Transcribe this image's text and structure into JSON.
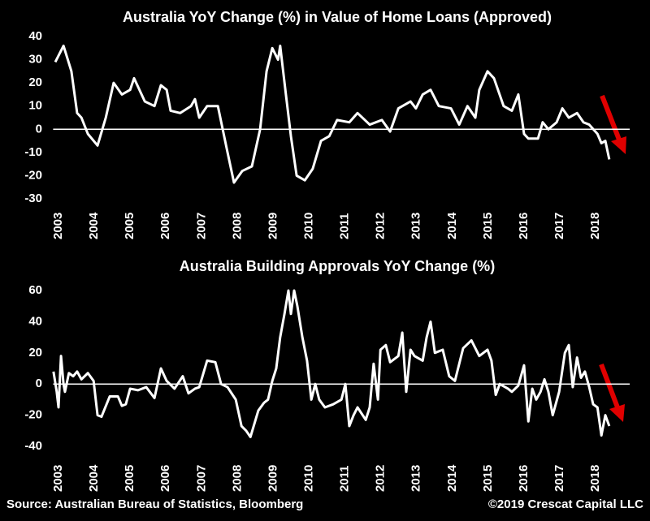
{
  "chart_data": [
    {
      "type": "line",
      "title": "Australia YoY Change (%) in Value of Home Loans (Approved)",
      "xlim": [
        2002.85,
        2018.95
      ],
      "xticks": [
        2003,
        2004,
        2005,
        2006,
        2007,
        2008,
        2009,
        2010,
        2011,
        2012,
        2013,
        2014,
        2015,
        2016,
        2017,
        2018
      ],
      "ylim": [
        -30,
        40
      ],
      "yticks": [
        -30,
        -20,
        -10,
        0,
        10,
        20,
        30,
        40
      ],
      "series": [
        {
          "color": "#ffffff",
          "x": [
            2002.91,
            2003.14,
            2003.36,
            2003.52,
            2003.64,
            2003.82,
            2004.09,
            2004.32,
            2004.54,
            2004.77,
            2005.0,
            2005.11,
            2005.41,
            2005.68,
            2005.86,
            2006.02,
            2006.13,
            2006.4,
            2006.7,
            2006.81,
            2006.93,
            2007.15,
            2007.45,
            2007.72,
            2007.9,
            2008.13,
            2008.4,
            2008.63,
            2008.81,
            2008.97,
            2009.13,
            2009.19,
            2009.35,
            2009.49,
            2009.65,
            2009.88,
            2010.1,
            2010.33,
            2010.56,
            2010.78,
            2011.12,
            2011.35,
            2011.69,
            2012.03,
            2012.26,
            2012.49,
            2012.83,
            2012.98,
            2013.17,
            2013.39,
            2013.62,
            2013.96,
            2014.19,
            2014.42,
            2014.64,
            2014.75,
            2014.98,
            2015.16,
            2015.43,
            2015.66,
            2015.84,
            2016.0,
            2016.12,
            2016.39,
            2016.52,
            2016.68,
            2016.91,
            2017.07,
            2017.25,
            2017.48,
            2017.66,
            2017.82,
            2018.05,
            2018.16,
            2018.27,
            2018.38
          ],
          "values": [
            29,
            36,
            25,
            7,
            5,
            -2,
            -7,
            5,
            20,
            15,
            17,
            22,
            12,
            10,
            19,
            17,
            8,
            7,
            10,
            13,
            5,
            10,
            10,
            -10,
            -23,
            -18,
            -16,
            0,
            25,
            35,
            30,
            36,
            15,
            -3,
            -20,
            -22,
            -17,
            -5,
            -3,
            4,
            3,
            7,
            2,
            4,
            -1,
            9,
            12,
            9,
            15,
            17,
            10,
            9,
            2,
            10,
            5,
            17,
            25,
            22,
            10,
            8,
            15,
            -2,
            -4,
            -4,
            3,
            0,
            3,
            9,
            5,
            7,
            3,
            2,
            -2,
            -6,
            -5,
            -13
          ]
        }
      ]
    },
    {
      "type": "line",
      "title": "Australia Building Approvals YoY Change (%)",
      "xlim": [
        2002.85,
        2018.95
      ],
      "xticks": [
        2003,
        2004,
        2005,
        2006,
        2007,
        2008,
        2009,
        2010,
        2011,
        2012,
        2013,
        2014,
        2015,
        2016,
        2017,
        2018
      ],
      "ylim": [
        -40,
        60
      ],
      "yticks": [
        -40,
        -20,
        0,
        20,
        40,
        60
      ],
      "series": [
        {
          "color": "#ffffff",
          "x": [
            2002.86,
            2002.95,
            2003.0,
            2003.07,
            2003.14,
            2003.18,
            2003.29,
            2003.41,
            2003.52,
            2003.64,
            2003.82,
            2003.98,
            2004.09,
            2004.2,
            2004.43,
            2004.66,
            2004.77,
            2004.88,
            2005.0,
            2005.22,
            2005.45,
            2005.68,
            2005.86,
            2006.02,
            2006.24,
            2006.47,
            2006.63,
            2006.81,
            2006.93,
            2007.15,
            2007.38,
            2007.54,
            2007.72,
            2007.95,
            2008.11,
            2008.24,
            2008.36,
            2008.58,
            2008.74,
            2008.85,
            2008.97,
            2009.08,
            2009.19,
            2009.31,
            2009.42,
            2009.49,
            2009.58,
            2009.67,
            2009.81,
            2009.94,
            2010.06,
            2010.17,
            2010.28,
            2010.44,
            2010.67,
            2010.9,
            2011.01,
            2011.12,
            2011.24,
            2011.35,
            2011.58,
            2011.69,
            2011.8,
            2011.92,
            2011.99,
            2012.14,
            2012.26,
            2012.49,
            2012.6,
            2012.71,
            2012.83,
            2012.94,
            2013.17,
            2013.28,
            2013.39,
            2013.51,
            2013.73,
            2013.91,
            2014.07,
            2014.3,
            2014.53,
            2014.75,
            2014.98,
            2015.09,
            2015.21,
            2015.32,
            2015.55,
            2015.66,
            2015.84,
            2016.0,
            2016.12,
            2016.23,
            2016.34,
            2016.46,
            2016.57,
            2016.68,
            2016.8,
            2016.98,
            2017.14,
            2017.25,
            2017.36,
            2017.48,
            2017.59,
            2017.7,
            2017.82,
            2017.93,
            2018.05,
            2018.16,
            2018.27,
            2018.38
          ],
          "values": [
            8,
            -5,
            -15,
            18,
            0,
            -5,
            7,
            5,
            8,
            3,
            7,
            2,
            -20,
            -21,
            -8,
            -8,
            -14,
            -13,
            -3,
            -4,
            -2,
            -9,
            10,
            2,
            -3,
            5,
            -6,
            -3,
            -2,
            15,
            14,
            0,
            -2,
            -10,
            -27,
            -30,
            -34,
            -17,
            -12,
            -10,
            2,
            10,
            30,
            45,
            60,
            45,
            60,
            50,
            30,
            15,
            -10,
            0,
            -10,
            -15,
            -13,
            -10,
            0,
            -27,
            -20,
            -15,
            -23,
            -15,
            13,
            -10,
            22,
            25,
            14,
            18,
            33,
            -5,
            22,
            18,
            15,
            30,
            40,
            20,
            22,
            5,
            2,
            23,
            28,
            18,
            22,
            15,
            -7,
            0,
            -3,
            -5,
            -1,
            12,
            -24,
            -3,
            -10,
            -5,
            3,
            -5,
            -20,
            -5,
            20,
            25,
            -2,
            17,
            4,
            8,
            -2,
            -13,
            -15,
            -33,
            -20,
            -27
          ]
        }
      ]
    }
  ],
  "source": "Source: Australian Bureau of Statistics, Bloomberg",
  "copyright": "©2019 Crescat Capital LLC"
}
